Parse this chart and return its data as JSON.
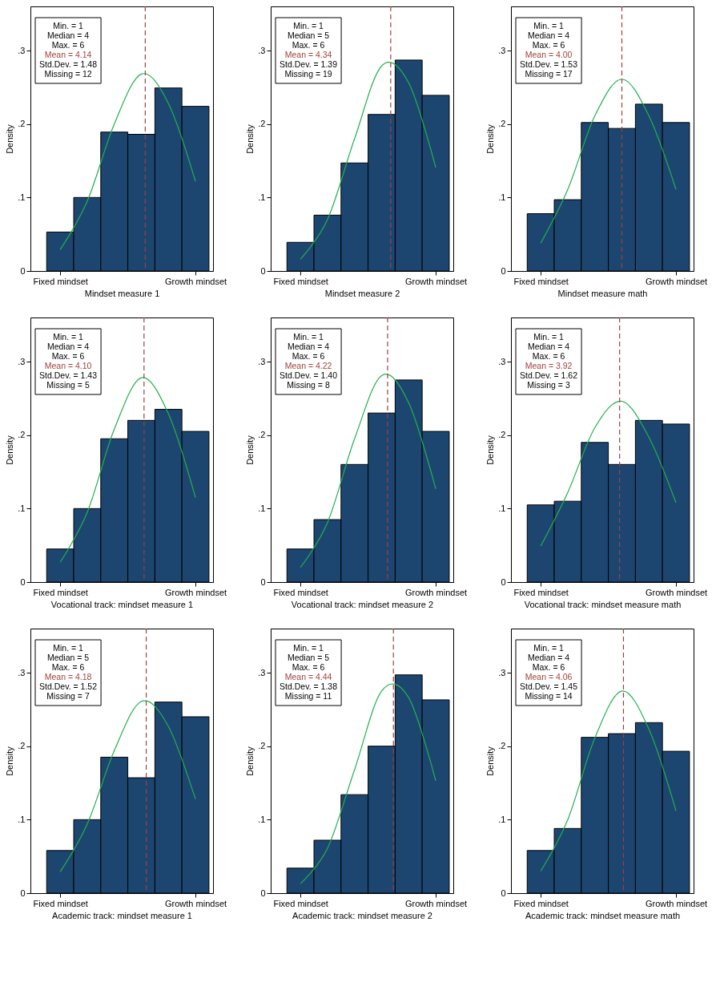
{
  "chart_data": [
    {
      "type": "bar",
      "xlabel": "Mindset measure math",
      "ylabel": "Density",
      "categories": [
        "Fixed mindset",
        null,
        null,
        null,
        null,
        "Growth mindset"
      ],
      "values": [
        0.078,
        0.097,
        0.202,
        0.194,
        0.227,
        0.202
      ],
      "color": "#1c4670",
      "ylim": [
        0,
        0.36
      ],
      "yticks": [
        0,
        {
          "value": 0.1,
          "label": ".1"
        },
        {
          "value": 0.2,
          "label": ".2"
        },
        {
          "value": 0.3,
          "label": ".3"
        }
      ],
      "series": [
        {
          "type": "line",
          "color": "#22b14c",
          "values": [
            0.038,
            0.111,
            0.211,
            0.261,
            0.211,
            0.111
          ]
        }
      ],
      "annotations": [
        "Min. = 1",
        "Median = 4",
        "Max. = 6",
        "Mean = 4.00",
        "Std.Dev. = 1.53",
        "Missing = 17"
      ]
    },
    {
      "type": "bar",
      "xlabel": "Vocational track: mindset measure math",
      "ylabel": "Density",
      "categories": [
        "Fixed mindset",
        null,
        null,
        null,
        null,
        "Growth mindset"
      ],
      "values": [
        0.105,
        0.11,
        0.19,
        0.16,
        0.22,
        0.215
      ],
      "color": "#1c4670",
      "ylim": [
        0,
        0.36
      ],
      "yticks": [
        0,
        {
          "value": 0.1,
          "label": ".1"
        },
        {
          "value": 0.2,
          "label": ".2"
        },
        {
          "value": 0.3,
          "label": ".3"
        }
      ],
      "series": [
        {
          "type": "line",
          "color": "#22b14c",
          "values": [
            0.049,
            0.122,
            0.21,
            0.246,
            0.197,
            0.108
          ]
        }
      ],
      "annotations": [
        "Min. = 1",
        "Median = 4",
        "Max. = 6",
        "Mean = 3.92",
        "Std.Dev. = 1.62",
        "Missing = 3"
      ]
    },
    {
      "type": "bar",
      "xlabel": "Academic track: mindset measure math",
      "ylabel": "Density",
      "categories": [
        "Fixed mindset",
        null,
        null,
        null,
        null,
        "Growth mindset"
      ],
      "values": [
        0.058,
        0.088,
        0.212,
        0.217,
        0.232,
        0.193
      ],
      "color": "#1c4670",
      "ylim": [
        0,
        0.36
      ],
      "yticks": [
        0,
        {
          "value": 0.1,
          "label": ".1"
        },
        {
          "value": 0.2,
          "label": ".2"
        },
        {
          "value": 0.3,
          "label": ".3"
        }
      ],
      "series": [
        {
          "type": "line",
          "color": "#22b14c",
          "values": [
            0.03,
            0.1,
            0.211,
            0.275,
            0.223,
            0.112
          ]
        }
      ],
      "annotations": [
        "Min. = 1",
        "Median = 4",
        "Max. = 6",
        "Mean = 4.06",
        "Std.Dev. = 1.45",
        "Missing = 14"
      ]
    },
    {
      "type": "bar",
      "xlabel": "Mindset measure 2",
      "ylabel": "Density",
      "categories": [
        "Fixed mindset",
        null,
        null,
        null,
        null,
        "Growth mindset"
      ],
      "values": [
        0.039,
        0.076,
        0.147,
        0.213,
        0.287,
        0.239
      ],
      "color": "#1c4670",
      "ylim": [
        0,
        0.36
      ],
      "yticks": [
        0,
        {
          "value": 0.1,
          "label": ".1"
        },
        {
          "value": 0.2,
          "label": ".2"
        },
        {
          "value": 0.3,
          "label": ".3"
        }
      ],
      "series": [
        {
          "type": "line",
          "color": "#22b14c",
          "values": [
            0.016,
            0.07,
            0.18,
            0.279,
            0.256,
            0.141
          ]
        }
      ],
      "annotations": [
        "Min. = 1",
        "Median = 5",
        "Max. = 6",
        "Mean = 4.34",
        "Std.Dev. = 1.39",
        "Missing = 19"
      ]
    },
    {
      "type": "bar",
      "xlabel": "Vocational track: mindset measure 2",
      "ylabel": "Density",
      "categories": [
        "Fixed mindset",
        null,
        null,
        null,
        null,
        "Growth mindset"
      ],
      "values": [
        0.045,
        0.085,
        0.16,
        0.23,
        0.275,
        0.205
      ],
      "color": "#1c4670",
      "ylim": [
        0,
        0.36
      ],
      "yticks": [
        0,
        {
          "value": 0.1,
          "label": ".1"
        },
        {
          "value": 0.2,
          "label": ".2"
        },
        {
          "value": 0.3,
          "label": ".3"
        }
      ],
      "series": [
        {
          "type": "line",
          "color": "#22b14c",
          "values": [
            0.02,
            0.081,
            0.195,
            0.281,
            0.244,
            0.127
          ]
        }
      ],
      "annotations": [
        "Min. = 1",
        "Median = 4",
        "Max. = 6",
        "Mean = 4.22",
        "Std.Dev. = 1.40",
        "Missing = 8"
      ]
    },
    {
      "type": "bar",
      "xlabel": "Academic track: mindset measure 2",
      "ylabel": "Density",
      "categories": [
        "Fixed mindset",
        null,
        null,
        null,
        null,
        "Growth mindset"
      ],
      "values": [
        0.034,
        0.072,
        0.134,
        0.2,
        0.297,
        0.263
      ],
      "color": "#1c4670",
      "ylim": [
        0,
        0.36
      ],
      "yticks": [
        0,
        {
          "value": 0.1,
          "label": ".1"
        },
        {
          "value": 0.2,
          "label": ".2"
        },
        {
          "value": 0.3,
          "label": ".3"
        }
      ],
      "series": [
        {
          "type": "line",
          "color": "#22b14c",
          "values": [
            0.013,
            0.061,
            0.168,
            0.275,
            0.266,
            0.153
          ]
        }
      ],
      "annotations": [
        "Min. = 1",
        "Median = 5",
        "Max. = 6",
        "Mean = 4.44",
        "Std.Dev. = 1.38",
        "Missing = 11"
      ]
    },
    {
      "type": "bar",
      "xlabel": "Mindset measure 1",
      "ylabel": "Density",
      "categories": [
        "Fixed mindset",
        null,
        null,
        null,
        null,
        "Growth mindset"
      ],
      "values": [
        0.053,
        0.1,
        0.189,
        0.186,
        0.249,
        0.224
      ],
      "color": "#1c4670",
      "ylim": [
        0,
        0.36
      ],
      "yticks": [
        0,
        {
          "value": 0.1,
          "label": ".1"
        },
        {
          "value": 0.2,
          "label": ".2"
        },
        {
          "value": 0.3,
          "label": ".3"
        }
      ],
      "series": [
        {
          "type": "line",
          "color": "#22b14c",
          "values": [
            0.029,
            0.095,
            0.2,
            0.268,
            0.228,
            0.122
          ]
        }
      ],
      "annotations": [
        "Min. = 1",
        "Median = 4",
        "Max. = 6",
        "Mean = 4.14",
        "Std.Dev. = 1.48",
        "Missing = 12"
      ]
    },
    {
      "type": "bar",
      "xlabel": "Vocational track: mindset measure 1",
      "ylabel": "Density",
      "categories": [
        "Fixed mindset",
        null,
        null,
        null,
        null,
        "Growth mindset"
      ],
      "values": [
        0.045,
        0.1,
        0.195,
        0.22,
        0.235,
        0.205
      ],
      "color": "#1c4670",
      "ylim": [
        0,
        0.36
      ],
      "yticks": [
        0,
        {
          "value": 0.1,
          "label": ".1"
        },
        {
          "value": 0.2,
          "label": ".2"
        },
        {
          "value": 0.3,
          "label": ".3"
        }
      ],
      "series": [
        {
          "type": "line",
          "color": "#22b14c",
          "values": [
            0.027,
            0.095,
            0.208,
            0.278,
            0.229,
            0.115
          ]
        }
      ],
      "annotations": [
        "Min. = 1",
        "Median = 4",
        "Max. = 6",
        "Mean = 4.10",
        "Std.Dev. = 1.43",
        "Missing = 5"
      ]
    },
    {
      "type": "bar",
      "xlabel": "Academic track: mindset measure 1",
      "ylabel": "Density",
      "categories": [
        "Fixed mindset",
        null,
        null,
        null,
        null,
        "Growth mindset"
      ],
      "values": [
        0.058,
        0.1,
        0.185,
        0.157,
        0.26,
        0.24
      ],
      "color": "#1c4670",
      "ylim": [
        0,
        0.36
      ],
      "yticks": [
        0,
        {
          "value": 0.1,
          "label": ".1"
        },
        {
          "value": 0.2,
          "label": ".2"
        },
        {
          "value": 0.3,
          "label": ".3"
        }
      ],
      "series": [
        {
          "type": "line",
          "color": "#22b14c",
          "values": [
            0.029,
            0.094,
            0.194,
            0.261,
            0.227,
            0.128
          ]
        }
      ],
      "annotations": [
        "Min. = 1",
        "Median = 5",
        "Max. = 6",
        "Mean = 4.18",
        "Std.Dev. = 1.52",
        "Missing = 7"
      ]
    }
  ]
}
